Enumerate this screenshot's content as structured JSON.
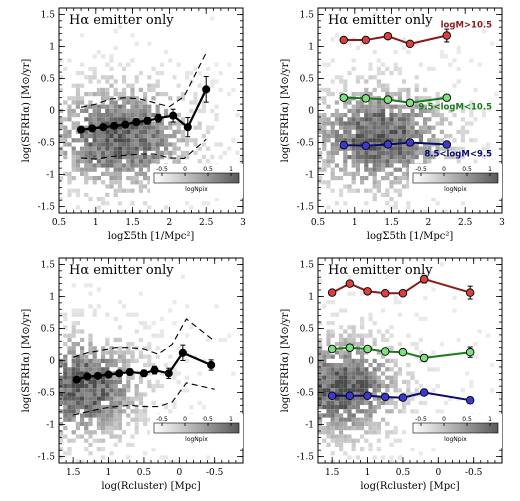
{
  "chart_data": [
    {
      "id": "p1",
      "type": "scatter",
      "title": "Hα emitter only",
      "xlabel": "logΣ5th [1/Mpc²]",
      "ylabel": "log(SFRHα) [M⊙/yr]",
      "xlim": [
        0.5,
        3.0
      ],
      "ylim": [
        -1.6,
        1.6
      ],
      "x_ticks": [
        0.5,
        1,
        1.5,
        2,
        2.5,
        3
      ],
      "y_ticks": [
        -1.5,
        -1,
        -0.5,
        0,
        0.5,
        1,
        1.5
      ],
      "series": [
        {
          "x": [
            0.8,
            0.95,
            1.1,
            1.25,
            1.4,
            1.55,
            1.7,
            1.85,
            2.05,
            2.25,
            2.5
          ],
          "y": [
            -0.3,
            -0.28,
            -0.26,
            -0.24,
            -0.22,
            -0.18,
            -0.16,
            -0.12,
            -0.08,
            -0.26,
            0.33
          ],
          "yerr": [
            0.04,
            0.04,
            0.04,
            0.04,
            0.04,
            0.05,
            0.05,
            0.06,
            0.1,
            0.15,
            0.2
          ],
          "color": "#000000",
          "kind": "median"
        },
        {
          "x": [
            0.8,
            1.0,
            1.2,
            1.4,
            1.6,
            1.8,
            2.0,
            2.2,
            2.5
          ],
          "y": [
            0.05,
            0.1,
            0.18,
            0.2,
            0.18,
            0.12,
            0.06,
            0.22,
            0.9
          ],
          "color": "#000000",
          "kind": "dashed-upper"
        },
        {
          "x": [
            0.8,
            1.0,
            1.2,
            1.4,
            1.6,
            1.8,
            2.0,
            2.2,
            2.5
          ],
          "y": [
            -0.74,
            -0.76,
            -0.72,
            -0.7,
            -0.68,
            -0.68,
            -0.74,
            -0.75,
            -0.45
          ],
          "color": "#000000",
          "kind": "dashed-lower"
        }
      ],
      "colorbar": {
        "ticks": [
          "-0.5",
          "0",
          "0.5",
          "1"
        ],
        "label": "logNpix"
      }
    },
    {
      "id": "p2",
      "type": "scatter",
      "title": "Hα emitter only",
      "xlabel": "logΣ5th [1/Mpc²]",
      "ylabel": "log(SFRHα) [M⊙/yr]",
      "xlim": [
        0.5,
        3.0
      ],
      "ylim": [
        -1.6,
        1.6
      ],
      "x_ticks": [
        0.5,
        1,
        1.5,
        2,
        2.5,
        3
      ],
      "y_ticks": [
        -1.5,
        -1,
        -0.5,
        0,
        0.5,
        1,
        1.5
      ],
      "series": [
        {
          "name": "logM>10.5",
          "x": [
            0.85,
            1.15,
            1.45,
            1.75,
            2.25
          ],
          "y": [
            1.1,
            1.1,
            1.16,
            1.04,
            1.17
          ],
          "yerr": [
            0.03,
            0.03,
            0.03,
            0.03,
            0.1
          ],
          "color": "#8b1a1a",
          "fill": "#d94040"
        },
        {
          "name": "9.5<logM<10.5",
          "x": [
            0.85,
            1.15,
            1.45,
            1.75,
            2.25
          ],
          "y": [
            0.2,
            0.19,
            0.17,
            0.12,
            0.2
          ],
          "yerr": [
            0.02,
            0.02,
            0.02,
            0.02,
            0.03
          ],
          "color": "#1a7a1a",
          "fill": "#7fe07f"
        },
        {
          "name": "8.5<logM<9.5",
          "x": [
            0.85,
            1.15,
            1.45,
            1.75,
            2.25
          ],
          "y": [
            -0.54,
            -0.55,
            -0.53,
            -0.5,
            -0.53
          ],
          "yerr": [
            0.02,
            0.02,
            0.02,
            0.02,
            0.03
          ],
          "color": "#0a0a6a",
          "fill": "#3a3ad0"
        }
      ],
      "colorbar": {
        "ticks": [
          "-0.5",
          "0",
          "0.5",
          "1"
        ],
        "label": "logNpix"
      }
    },
    {
      "id": "p3",
      "type": "scatter",
      "title": "Hα emitter only",
      "xlabel": "log(Rcluster) [Mpc]",
      "ylabel": "log(SFRHα) [M⊙/yr]",
      "xlim": [
        1.7,
        -0.9
      ],
      "ylim": [
        -1.6,
        1.6
      ],
      "x_ticks": [
        1.5,
        1,
        0.5,
        0,
        -0.5
      ],
      "y_ticks": [
        -1.5,
        -1,
        -0.5,
        0,
        0.5,
        1,
        1.5
      ],
      "series": [
        {
          "x": [
            1.45,
            1.3,
            1.15,
            1.0,
            0.85,
            0.7,
            0.5,
            0.35,
            0.15,
            -0.05,
            -0.45
          ],
          "y": [
            -0.3,
            -0.25,
            -0.24,
            -0.22,
            -0.2,
            -0.18,
            -0.2,
            -0.15,
            -0.2,
            0.12,
            -0.07
          ],
          "yerr": [
            0.04,
            0.04,
            0.04,
            0.04,
            0.04,
            0.05,
            0.05,
            0.06,
            0.08,
            0.12,
            0.08
          ],
          "color": "#000000",
          "kind": "median"
        },
        {
          "x": [
            1.5,
            1.3,
            1.1,
            0.9,
            0.7,
            0.5,
            0.3,
            0.1,
            -0.1,
            -0.5
          ],
          "y": [
            0.05,
            0.12,
            0.16,
            0.2,
            0.2,
            0.18,
            0.1,
            0.25,
            0.65,
            0.3
          ],
          "color": "#000000",
          "kind": "dashed-upper"
        },
        {
          "x": [
            1.5,
            1.3,
            1.1,
            0.9,
            0.7,
            0.5,
            0.3,
            0.1,
            -0.1,
            -0.5
          ],
          "y": [
            -0.85,
            -0.8,
            -0.75,
            -0.72,
            -0.7,
            -0.72,
            -0.72,
            -0.65,
            -0.35,
            -0.45
          ],
          "color": "#000000",
          "kind": "dashed-lower"
        }
      ],
      "colorbar": {
        "ticks": [
          "-0.5",
          "0",
          "0.5",
          "1"
        ],
        "label": "logNpix"
      }
    },
    {
      "id": "p4",
      "type": "scatter",
      "title": "Hα emitter only",
      "xlabel": "log(Rcluster) [Mpc]",
      "ylabel": "log(SFRHα) [M⊙/yr]",
      "xlim": [
        1.7,
        -0.9
      ],
      "ylim": [
        -1.6,
        1.6
      ],
      "x_ticks": [
        1.5,
        1,
        0.5,
        0,
        -0.5
      ],
      "y_ticks": [
        -1.5,
        -1,
        -0.5,
        0,
        0.5,
        1,
        1.5
      ],
      "series": [
        {
          "x": [
            1.5,
            1.25,
            1.0,
            0.75,
            0.5,
            0.2,
            -0.45
          ],
          "y": [
            1.06,
            1.2,
            1.08,
            1.05,
            1.05,
            1.27,
            1.06
          ],
          "yerr": [
            0.03,
            0.03,
            0.03,
            0.03,
            0.03,
            0.06,
            0.1
          ],
          "color": "#8b1a1a",
          "fill": "#d94040"
        },
        {
          "x": [
            1.5,
            1.25,
            1.0,
            0.75,
            0.5,
            0.2,
            -0.45
          ],
          "y": [
            0.18,
            0.2,
            0.18,
            0.14,
            0.13,
            0.04,
            0.13
          ],
          "yerr": [
            0.02,
            0.02,
            0.02,
            0.02,
            0.03,
            0.05,
            0.08
          ],
          "color": "#1a7a1a",
          "fill": "#7fe07f"
        },
        {
          "x": [
            1.5,
            1.25,
            1.0,
            0.75,
            0.5,
            0.2,
            -0.45
          ],
          "y": [
            -0.55,
            -0.55,
            -0.55,
            -0.57,
            -0.58,
            -0.5,
            -0.62
          ],
          "yerr": [
            0.02,
            0.02,
            0.02,
            0.02,
            0.02,
            0.04,
            0.05
          ],
          "color": "#0a0a6a",
          "fill": "#3a3ad0"
        }
      ],
      "colorbar": {
        "ticks": [
          "-0.5",
          "0",
          "0.5",
          "1"
        ],
        "label": "logNpix"
      }
    }
  ]
}
